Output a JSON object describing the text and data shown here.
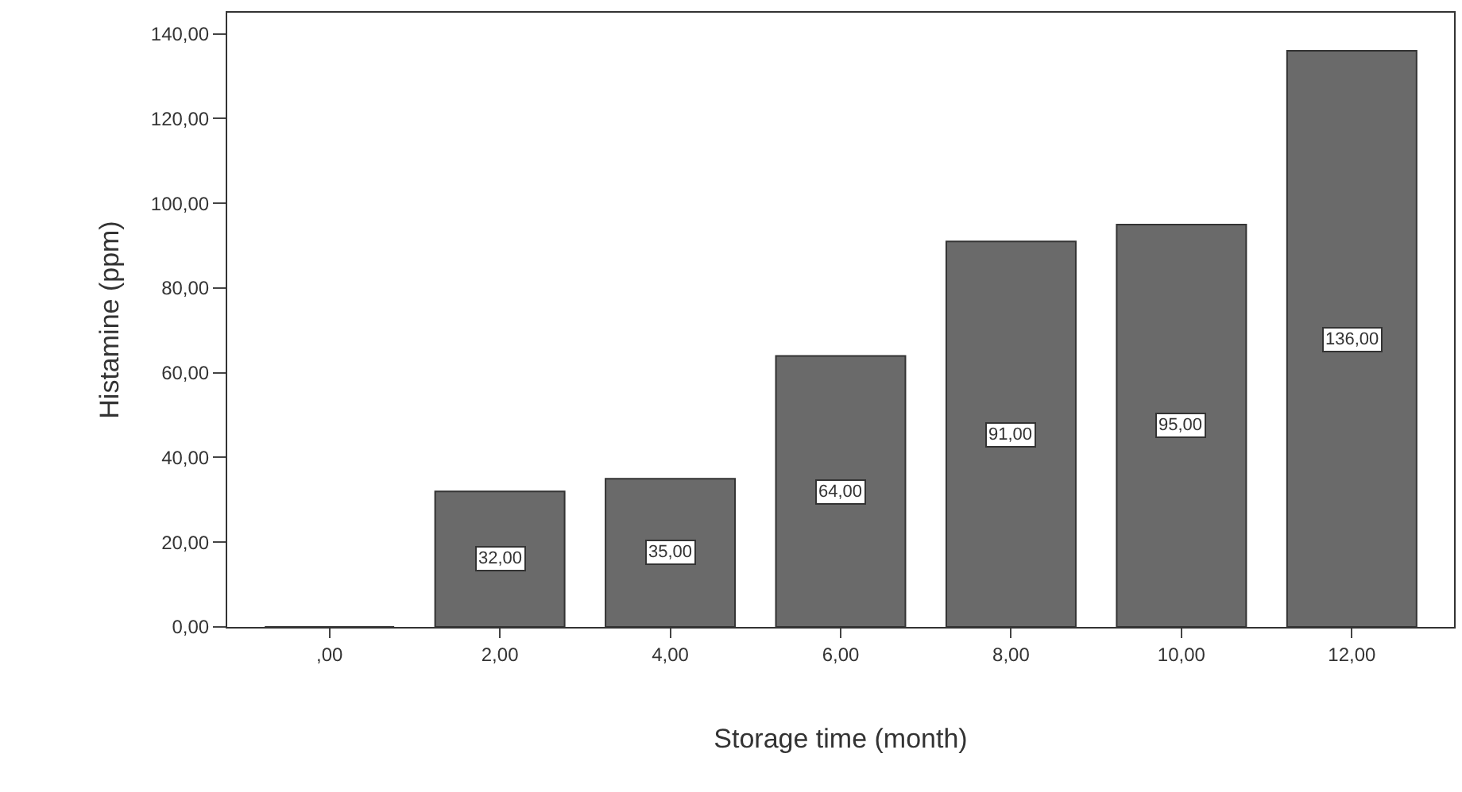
{
  "chart_data": {
    "type": "bar",
    "xlabel": "Storage time (month)",
    "ylabel": "Histamine (ppm)",
    "categories": [
      ",00",
      "2,00",
      "4,00",
      "6,00",
      "8,00",
      "10,00",
      "12,00"
    ],
    "values": [
      0,
      32,
      35,
      64,
      91,
      95,
      136
    ],
    "value_labels": [
      null,
      "32,00",
      "35,00",
      "64,00",
      "91,00",
      "95,00",
      "136,00"
    ],
    "color": "#6a6a6a",
    "ylim": [
      0,
      145
    ],
    "yticks": [
      {
        "value": 0,
        "label": "0,00"
      },
      {
        "value": 20,
        "label": "20,00"
      },
      {
        "value": 40,
        "label": "40,00"
      },
      {
        "value": 60,
        "label": "60,00"
      },
      {
        "value": 80,
        "label": "80,00"
      },
      {
        "value": 100,
        "label": "100,00"
      },
      {
        "value": 120,
        "label": "120,00"
      },
      {
        "value": 140,
        "label": "140,00"
      }
    ]
  }
}
